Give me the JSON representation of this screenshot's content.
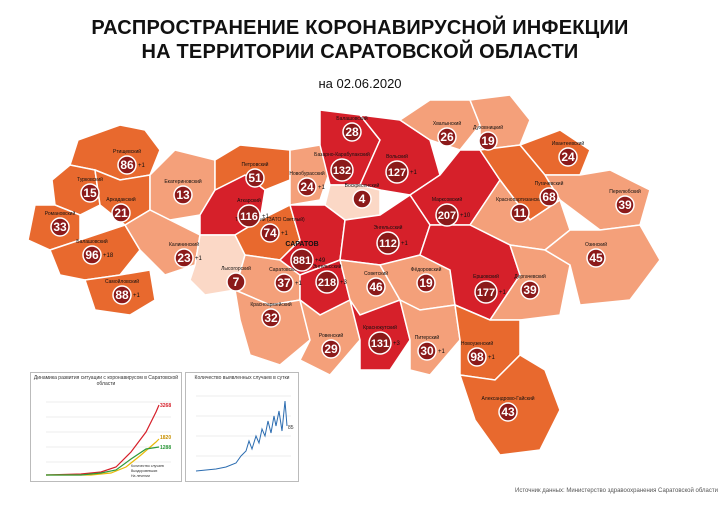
{
  "title_line1": "РАСПРОСТРАНЕНИЕ КОРОНАВИРУСНОЙ ИНФЕКЦИИ",
  "title_line2": "НА ТЕРРИТОРИИ САРАТОВСКОЙ ОБЛАСТИ",
  "date_label": "на 02.06.2020",
  "colors": {
    "high": "#d6202a",
    "medium": "#e8692e",
    "low": "#f4a07a",
    "lowest": "#f8c4a8",
    "none": "#fbd8c6",
    "border": "#ffffff",
    "circle": "#8b1a1a"
  },
  "districts": [
    {
      "name": "Балашовский",
      "count": "28"
    },
    {
      "name": "Хвалынский",
      "count": "26"
    },
    {
      "name": "Духовницкий",
      "count": "19"
    },
    {
      "name": "Ртищевский",
      "count": "86",
      "delta": "+1"
    },
    {
      "name": "Петровский",
      "count": "51"
    },
    {
      "name": "Базарно-Карабулакский",
      "count": "132"
    },
    {
      "name": "Вольский",
      "count": "127",
      "delta": "+1"
    },
    {
      "name": "Ивантеевский",
      "count": "24"
    },
    {
      "name": "Турковский",
      "count": "15"
    },
    {
      "name": "Екатериновский",
      "count": "13"
    },
    {
      "name": "Новобурасский",
      "count": "24",
      "delta": "+1"
    },
    {
      "name": "Пугачевский",
      "count": "68"
    },
    {
      "name": "Перелюбский",
      "count": "39"
    },
    {
      "name": "Аркадакский",
      "count": "21"
    },
    {
      "name": "Аткарский",
      "count": "116",
      "delta": "+1"
    },
    {
      "name": "Воскресенский",
      "count": "4"
    },
    {
      "name": "Марксовский",
      "count": "207",
      "delta": "+10"
    },
    {
      "name": "Романовский",
      "count": "33"
    },
    {
      "name": "Татищевский (ЗАТО Светлый)",
      "count": "74",
      "delta": "+1"
    },
    {
      "name": "Краснопартизанский",
      "count": "11"
    },
    {
      "name": "Балашовский",
      "count": "96",
      "delta": "+18"
    },
    {
      "name": "Калининский",
      "count": "23",
      "delta": "+1"
    },
    {
      "name": "Энгельсский",
      "count": "112",
      "delta": "+1"
    },
    {
      "name": "САРАТОВ",
      "count": "881",
      "delta": "+49"
    },
    {
      "name": "Озинский",
      "count": "45"
    },
    {
      "name": "Лысогорский",
      "count": "7"
    },
    {
      "name": "Саратовский",
      "count": "37",
      "delta": "+1"
    },
    {
      "name": "Энгельсский",
      "count": "218",
      "delta": "+3"
    },
    {
      "name": "Советский",
      "count": "46"
    },
    {
      "name": "Фёдоровский",
      "count": "19"
    },
    {
      "name": "Ершовский",
      "count": "177",
      "delta": "+1"
    },
    {
      "name": "Дергачевский",
      "count": "39"
    },
    {
      "name": "Самойловский",
      "count": "88",
      "delta": "+1"
    },
    {
      "name": "Красноармейский",
      "count": "32"
    },
    {
      "name": "Ровенский",
      "count": "29"
    },
    {
      "name": "Краснокутский",
      "count": "131",
      "delta": "+3"
    },
    {
      "name": "Питерский",
      "count": "30",
      "delta": "+1"
    },
    {
      "name": "Новоузенский",
      "count": "98",
      "delta": "+1"
    },
    {
      "name": "Александрово-Гайский",
      "count": "43"
    }
  ],
  "chart1": {
    "title": "Динамика развития ситуации с коронавирусом в Саратовской области",
    "values": [
      "3268",
      "1820",
      "1288"
    ],
    "legend": [
      "Количество случаев",
      "Выздоровевших",
      "На лечении"
    ]
  },
  "chart2": {
    "title": "Количество выявленных случаев в сутки",
    "last_value": "85"
  },
  "footer": "Источник данных: Министерство здравоохранения Саратовской области"
}
